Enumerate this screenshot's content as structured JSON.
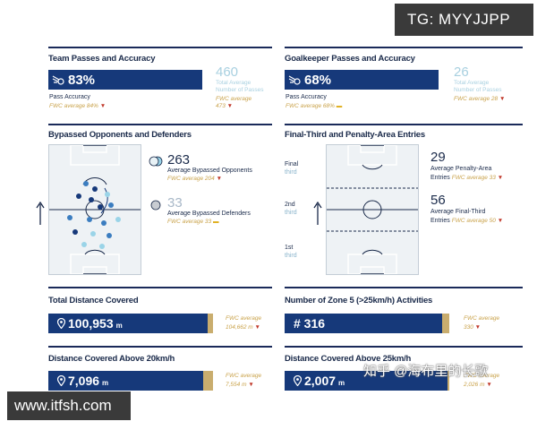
{
  "watermarks": {
    "top": "TG: MYYJJPP",
    "bottom": "www.itfsh.com",
    "zh": "知乎 @海布里的长歌"
  },
  "team_passes": {
    "title": "Team Passes and Accuracy",
    "value": "83%",
    "icon": "passes-icon",
    "label": "Pass Accuracy",
    "fwc_avg": "FWC average 84%",
    "trend": "down",
    "total_value": "460",
    "total_label_1": "Total Average",
    "total_label_2": "Number of Passes",
    "total_fwc": "FWC average",
    "total_fwc_value": "473"
  },
  "gk_passes": {
    "title": "Goalkeeper Passes and Accuracy",
    "value": "68%",
    "icon": "passes-icon",
    "label": "Pass Accuracy",
    "fwc_avg": "FWC average 68%",
    "trend": "equal",
    "total_value": "26",
    "total_label_1": "Total Average",
    "total_label_2": "Number of Passes",
    "total_fwc": "FWC average 28"
  },
  "bypassed": {
    "title": "Bypassed Opponents and Defenders",
    "opponents_value": "263",
    "opponents_label": "Average Bypassed Opponents",
    "opponents_fwc": "FWC average 204",
    "defenders_value": "33",
    "defenders_label": "Average Bypassed Defenders",
    "defenders_fwc": "FWC average 33"
  },
  "final_third": {
    "title": "Final-Third and Penalty-Area Entries",
    "thirds": [
      {
        "num": "Final",
        "word": "third"
      },
      {
        "num": "2nd",
        "word": "third"
      },
      {
        "num": "1st",
        "word": "third"
      }
    ],
    "penalty_value": "29",
    "penalty_label_1": "Average Penalty-Area",
    "penalty_label_2": "Entries",
    "penalty_fwc": "FWC average 33",
    "final_value": "56",
    "final_label_1": "Average Final-Third",
    "final_label_2": "Entries",
    "final_fwc": "FWC average 50"
  },
  "distance": {
    "title": "Total Distance Covered",
    "value": "100,953",
    "unit": "m",
    "fwc_1": "FWC average",
    "fwc_2": "104,662 m",
    "fill_fraction": 0.965
  },
  "zone5": {
    "title": "Number of Zone 5 (>25km/h) Activities",
    "value": "# 316",
    "fwc_1": "FWC average",
    "fwc_2": "330",
    "fill_fraction": 0.958
  },
  "dist20": {
    "title": "Distance Covered Above 20km/h",
    "value": "7,096",
    "unit": "m",
    "fwc_1": "FWC average",
    "fwc_2": "7,554 m",
    "fill_fraction": 0.94
  },
  "dist25": {
    "title": "Distance Covered Above 25km/h",
    "value": "2,007",
    "unit": "m",
    "fwc_1": "FWC average",
    "fwc_2": "2,026 m",
    "fill_fraction": 0.99
  },
  "colors": {
    "navy": "#16397a",
    "gold": "#c9ad6e",
    "light": "#a8d0e0",
    "red": "#c0392b"
  }
}
